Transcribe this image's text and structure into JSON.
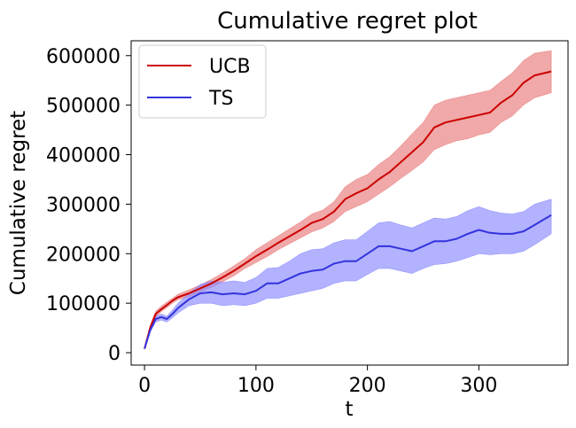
{
  "chart_data": {
    "type": "line",
    "title": "Cumulative regret plot",
    "xlabel": "t",
    "ylabel": "Cumulative regret",
    "xlim": [
      -12,
      380
    ],
    "ylim": [
      -25000,
      630000
    ],
    "xticks": [
      0,
      100,
      200,
      300
    ],
    "yticks": [
      0,
      100000,
      200000,
      300000,
      400000,
      500000,
      600000
    ],
    "grid": false,
    "legend_position": "top-left",
    "series": [
      {
        "name": "UCB",
        "color": "#cc0000",
        "band_color": "#e87a7a",
        "x": [
          0,
          5,
          10,
          15,
          20,
          25,
          30,
          40,
          50,
          60,
          70,
          80,
          90,
          100,
          110,
          120,
          130,
          140,
          150,
          160,
          170,
          180,
          190,
          200,
          210,
          220,
          230,
          240,
          250,
          260,
          270,
          280,
          290,
          300,
          310,
          320,
          330,
          340,
          350,
          365
        ],
        "y": [
          8000,
          50000,
          78000,
          88000,
          96000,
          105000,
          112000,
          120000,
          130000,
          140000,
          152000,
          165000,
          180000,
          195000,
          208000,
          222000,
          235000,
          248000,
          262000,
          270000,
          285000,
          310000,
          322000,
          332000,
          350000,
          365000,
          385000,
          405000,
          425000,
          455000,
          465000,
          470000,
          475000,
          480000,
          485000,
          505000,
          520000,
          545000,
          560000,
          568000
        ],
        "lower": [
          8000,
          45000,
          72000,
          83000,
          91000,
          100000,
          107000,
          113000,
          123000,
          132000,
          143000,
          155000,
          170000,
          182000,
          194000,
          208000,
          220000,
          232000,
          244000,
          252000,
          265000,
          285000,
          295000,
          305000,
          320000,
          335000,
          352000,
          368000,
          385000,
          410000,
          420000,
          428000,
          432000,
          440000,
          445000,
          465000,
          478000,
          500000,
          515000,
          525000
        ],
        "upper": [
          8000,
          55000,
          84000,
          94000,
          102000,
          110000,
          118000,
          127000,
          137000,
          148000,
          161000,
          175000,
          190000,
          208000,
          222000,
          236000,
          250000,
          264000,
          280000,
          288000,
          305000,
          335000,
          350000,
          360000,
          380000,
          396000,
          418000,
          442000,
          465000,
          500000,
          510000,
          515000,
          520000,
          525000,
          530000,
          548000,
          565000,
          590000,
          605000,
          610000
        ]
      },
      {
        "name": "TS",
        "color": "#3333dd",
        "band_color": "#8888ff",
        "x": [
          0,
          5,
          10,
          15,
          20,
          25,
          30,
          40,
          50,
          60,
          70,
          80,
          90,
          100,
          110,
          120,
          130,
          140,
          150,
          160,
          170,
          180,
          190,
          200,
          210,
          220,
          230,
          240,
          250,
          260,
          270,
          280,
          290,
          300,
          310,
          320,
          330,
          340,
          350,
          365
        ],
        "y": [
          8000,
          45000,
          68000,
          72000,
          68000,
          78000,
          90000,
          108000,
          120000,
          122000,
          118000,
          120000,
          118000,
          125000,
          140000,
          140000,
          150000,
          160000,
          165000,
          168000,
          180000,
          185000,
          185000,
          200000,
          215000,
          215000,
          210000,
          205000,
          215000,
          225000,
          225000,
          230000,
          240000,
          248000,
          242000,
          240000,
          240000,
          245000,
          258000,
          278000
        ],
        "lower": [
          8000,
          42000,
          62000,
          66000,
          62000,
          70000,
          80000,
          95000,
          100000,
          100000,
          95000,
          97000,
          95000,
          100000,
          110000,
          110000,
          115000,
          120000,
          125000,
          130000,
          140000,
          145000,
          145000,
          158000,
          170000,
          170000,
          165000,
          160000,
          170000,
          178000,
          180000,
          185000,
          192000,
          200000,
          198000,
          200000,
          200000,
          205000,
          218000,
          240000
        ],
        "upper": [
          8000,
          48000,
          74000,
          78000,
          74000,
          86000,
          100000,
          120000,
          138000,
          145000,
          142000,
          145000,
          142000,
          152000,
          170000,
          172000,
          185000,
          200000,
          208000,
          210000,
          222000,
          228000,
          228000,
          245000,
          262000,
          265000,
          258000,
          252000,
          262000,
          272000,
          270000,
          275000,
          287000,
          295000,
          287000,
          282000,
          280000,
          285000,
          300000,
          310000
        ]
      }
    ]
  }
}
